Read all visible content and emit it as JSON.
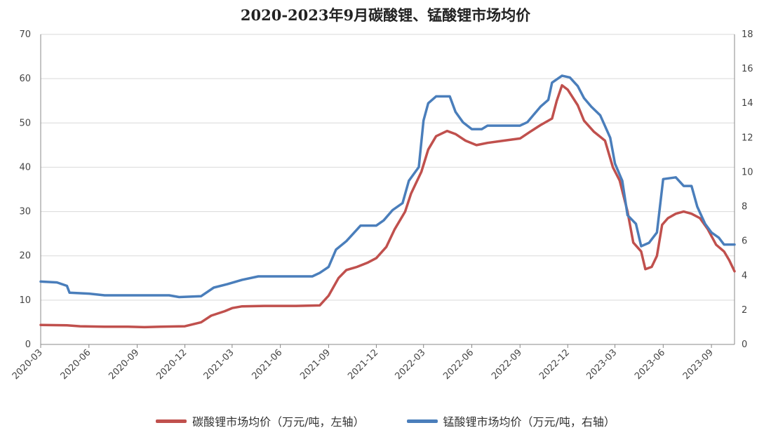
{
  "chart_data": {
    "type": "line",
    "title": "2020-2023年9月碳酸锂、锰酸锂市场均价",
    "x_tick_labels": [
      "2020-03",
      "2020-06",
      "2020-09",
      "2020-12",
      "2021-03",
      "2021-06",
      "2021-09",
      "2021-12",
      "2022-03",
      "2022-06",
      "2022-09",
      "2022-12",
      "2023-03",
      "2023-06",
      "2023-09"
    ],
    "y_left": {
      "ticks": [
        0,
        10,
        20,
        30,
        40,
        50,
        60,
        70
      ],
      "ylim": [
        0,
        70
      ]
    },
    "y_right": {
      "ticks": [
        0,
        2,
        4,
        6,
        8,
        10,
        12,
        14,
        16,
        18
      ],
      "ylim": [
        0,
        18
      ]
    },
    "x_range": [
      "2020-03-01",
      "2023-10-15"
    ],
    "grid": true,
    "legend_position": "bottom",
    "series": [
      {
        "name": "碳酸锂市场均价（万元/吨，左轴）",
        "axis": "left",
        "color": "#c0504d",
        "points": [
          [
            "2020-03-01",
            4.4
          ],
          [
            "2020-04-20",
            4.3
          ],
          [
            "2020-05-15",
            4.1
          ],
          [
            "2020-07-01",
            4.0
          ],
          [
            "2020-08-15",
            4.0
          ],
          [
            "2020-09-15",
            3.9
          ],
          [
            "2020-10-15",
            4.0
          ],
          [
            "2020-12-01",
            4.1
          ],
          [
            "2021-01-01",
            5.0
          ],
          [
            "2021-01-20",
            6.5
          ],
          [
            "2021-02-15",
            7.5
          ],
          [
            "2021-03-01",
            8.2
          ],
          [
            "2021-03-20",
            8.6
          ],
          [
            "2021-05-01",
            8.7
          ],
          [
            "2021-07-01",
            8.7
          ],
          [
            "2021-08-15",
            8.8
          ],
          [
            "2021-09-01",
            11.0
          ],
          [
            "2021-09-20",
            15.0
          ],
          [
            "2021-10-05",
            16.8
          ],
          [
            "2021-10-25",
            17.5
          ],
          [
            "2021-11-15",
            18.5
          ],
          [
            "2021-12-01",
            19.5
          ],
          [
            "2021-12-20",
            22.0
          ],
          [
            "2022-01-05",
            26.0
          ],
          [
            "2022-01-25",
            30.0
          ],
          [
            "2022-02-05",
            34.0
          ],
          [
            "2022-02-25",
            39.0
          ],
          [
            "2022-03-10",
            44.0
          ],
          [
            "2022-03-25",
            47.0
          ],
          [
            "2022-04-15",
            48.2
          ],
          [
            "2022-05-01",
            47.5
          ],
          [
            "2022-05-20",
            46.0
          ],
          [
            "2022-06-10",
            45.0
          ],
          [
            "2022-07-01",
            45.5
          ],
          [
            "2022-08-01",
            46.0
          ],
          [
            "2022-09-01",
            46.5
          ],
          [
            "2022-09-20",
            48.0
          ],
          [
            "2022-10-10",
            49.5
          ],
          [
            "2022-11-01",
            51.0
          ],
          [
            "2022-11-10",
            55.0
          ],
          [
            "2022-11-20",
            58.5
          ],
          [
            "2022-12-01",
            57.5
          ],
          [
            "2022-12-20",
            54.0
          ],
          [
            "2023-01-01",
            50.5
          ],
          [
            "2023-01-20",
            48.0
          ],
          [
            "2023-02-10",
            46.0
          ],
          [
            "2023-02-25",
            40.0
          ],
          [
            "2023-03-10",
            37.0
          ],
          [
            "2023-03-25",
            30.0
          ],
          [
            "2023-04-05",
            23.0
          ],
          [
            "2023-04-20",
            21.0
          ],
          [
            "2023-04-28",
            17.0
          ],
          [
            "2023-05-10",
            17.5
          ],
          [
            "2023-05-20",
            20.0
          ],
          [
            "2023-05-30",
            27.0
          ],
          [
            "2023-06-10",
            28.5
          ],
          [
            "2023-06-25",
            29.5
          ],
          [
            "2023-07-10",
            30.0
          ],
          [
            "2023-07-25",
            29.5
          ],
          [
            "2023-08-10",
            28.5
          ],
          [
            "2023-08-25",
            26.0
          ],
          [
            "2023-09-10",
            22.5
          ],
          [
            "2023-09-25",
            21.0
          ],
          [
            "2023-10-05",
            19.0
          ],
          [
            "2023-10-15",
            16.5
          ]
        ]
      },
      {
        "name": "锰酸锂市场均价（万元/吨，右轴）",
        "axis": "right",
        "color": "#4a7ebb",
        "points": [
          [
            "2020-03-01",
            3.65
          ],
          [
            "2020-04-01",
            3.6
          ],
          [
            "2020-04-20",
            3.4
          ],
          [
            "2020-04-25",
            3.0
          ],
          [
            "2020-06-01",
            2.95
          ],
          [
            "2020-07-01",
            2.85
          ],
          [
            "2020-09-01",
            2.85
          ],
          [
            "2020-11-01",
            2.85
          ],
          [
            "2020-11-20",
            2.75
          ],
          [
            "2021-01-01",
            2.8
          ],
          [
            "2021-01-25",
            3.3
          ],
          [
            "2021-02-20",
            3.5
          ],
          [
            "2021-03-20",
            3.75
          ],
          [
            "2021-04-20",
            3.95
          ],
          [
            "2021-06-01",
            3.95
          ],
          [
            "2021-08-01",
            3.95
          ],
          [
            "2021-08-15",
            4.15
          ],
          [
            "2021-09-01",
            4.5
          ],
          [
            "2021-09-15",
            5.5
          ],
          [
            "2021-10-05",
            6.0
          ],
          [
            "2021-10-20",
            6.5
          ],
          [
            "2021-11-01",
            6.9
          ],
          [
            "2021-12-01",
            6.9
          ],
          [
            "2021-12-15",
            7.2
          ],
          [
            "2022-01-01",
            7.8
          ],
          [
            "2022-01-20",
            8.2
          ],
          [
            "2022-02-01",
            9.5
          ],
          [
            "2022-02-20",
            10.3
          ],
          [
            "2022-03-01",
            13.0
          ],
          [
            "2022-03-10",
            14.0
          ],
          [
            "2022-03-25",
            14.4
          ],
          [
            "2022-04-20",
            14.4
          ],
          [
            "2022-05-01",
            13.5
          ],
          [
            "2022-05-15",
            12.9
          ],
          [
            "2022-06-01",
            12.5
          ],
          [
            "2022-06-20",
            12.5
          ],
          [
            "2022-07-01",
            12.7
          ],
          [
            "2022-08-01",
            12.7
          ],
          [
            "2022-09-01",
            12.7
          ],
          [
            "2022-09-15",
            12.9
          ],
          [
            "2022-10-10",
            13.8
          ],
          [
            "2022-10-25",
            14.2
          ],
          [
            "2022-11-01",
            15.2
          ],
          [
            "2022-11-20",
            15.6
          ],
          [
            "2022-12-05",
            15.5
          ],
          [
            "2022-12-20",
            15.0
          ],
          [
            "2023-01-01",
            14.3
          ],
          [
            "2023-01-15",
            13.8
          ],
          [
            "2023-02-01",
            13.3
          ],
          [
            "2023-02-20",
            12.0
          ],
          [
            "2023-03-01",
            10.5
          ],
          [
            "2023-03-15",
            9.5
          ],
          [
            "2023-03-25",
            7.5
          ],
          [
            "2023-04-10",
            7.0
          ],
          [
            "2023-04-20",
            5.7
          ],
          [
            "2023-05-05",
            5.9
          ],
          [
            "2023-05-20",
            6.5
          ],
          [
            "2023-06-01",
            9.6
          ],
          [
            "2023-06-25",
            9.7
          ],
          [
            "2023-07-10",
            9.2
          ],
          [
            "2023-07-25",
            9.2
          ],
          [
            "2023-08-05",
            8.0
          ],
          [
            "2023-08-20",
            7.0
          ],
          [
            "2023-09-01",
            6.5
          ],
          [
            "2023-09-15",
            6.2
          ],
          [
            "2023-09-25",
            5.8
          ],
          [
            "2023-10-15",
            5.8
          ]
        ]
      }
    ]
  }
}
